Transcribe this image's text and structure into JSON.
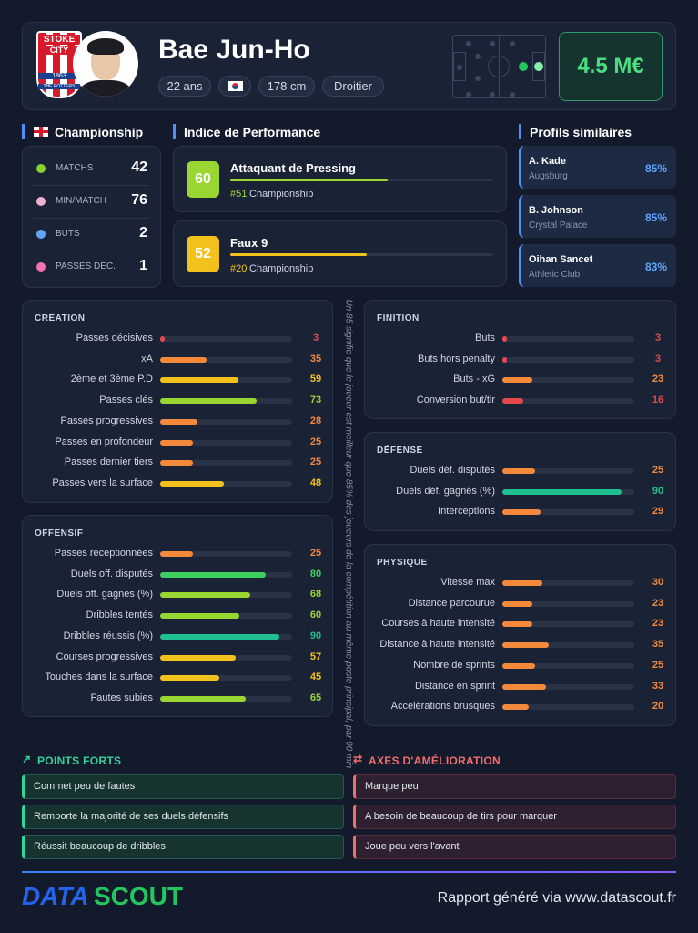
{
  "header": {
    "name": "Bae Jun-Ho",
    "age": "22 ans",
    "height": "178 cm",
    "foot": "Droitier",
    "market_value": "4.5 M€",
    "club_badge": {
      "top": "STOKE",
      "mid": "CITY",
      "year": "1863",
      "bottom": "THE POTTERS"
    }
  },
  "league": {
    "title": "Championship",
    "stats": [
      {
        "label": "MATCHS",
        "value": 42
      },
      {
        "label": "MIN/MATCH",
        "value": 76
      },
      {
        "label": "BUTS",
        "value": 2
      },
      {
        "label": "PASSES DÉC.",
        "value": 1
      }
    ]
  },
  "performance": {
    "title": "Indice de Performance",
    "profiles": [
      {
        "score": 60,
        "role": "Attaquant de Pressing",
        "rank": "#51",
        "league": "Championship"
      },
      {
        "score": 52,
        "role": "Faux 9",
        "rank": "#20",
        "league": "Championship"
      }
    ]
  },
  "similar": {
    "title": "Profils similaires",
    "players": [
      {
        "name": "A. Kade",
        "club": "Augsburg",
        "similarity": "85%"
      },
      {
        "name": "B. Johnson",
        "club": "Crystal Palace",
        "similarity": "85%"
      },
      {
        "name": "Oihan Sancet",
        "club": "Athletic Club",
        "similarity": "83%"
      }
    ]
  },
  "panels": [
    {
      "title": "CRÉATION",
      "rows": [
        {
          "label": "Passes décisives",
          "value": 3
        },
        {
          "label": "xA",
          "value": 35
        },
        {
          "label": "2ème et 3ème P.D",
          "value": 59
        },
        {
          "label": "Passes clés",
          "value": 73
        },
        {
          "label": "Passes progressives",
          "value": 28
        },
        {
          "label": "Passes en profondeur",
          "value": 25
        },
        {
          "label": "Passes dernier tiers",
          "value": 25
        },
        {
          "label": "Passes vers la surface",
          "value": 48
        }
      ]
    },
    {
      "title": "OFFENSIF",
      "rows": [
        {
          "label": "Passes réceptionnées",
          "value": 25
        },
        {
          "label": "Duels off. disputés",
          "value": 80
        },
        {
          "label": "Duels off. gagnés (%)",
          "value": 68
        },
        {
          "label": "Dribbles tentés",
          "value": 60
        },
        {
          "label": "Dribbles réussis (%)",
          "value": 90
        },
        {
          "label": "Courses progressives",
          "value": 57
        },
        {
          "label": "Touches dans la surface",
          "value": 45
        },
        {
          "label": "Fautes subies",
          "value": 65
        }
      ]
    },
    {
      "title": "FINITION",
      "rows": [
        {
          "label": "Buts",
          "value": 3
        },
        {
          "label": "Buts hors penalty",
          "value": 3
        },
        {
          "label": "Buts - xG",
          "value": 23
        },
        {
          "label": "Conversion but/tir",
          "value": 16
        }
      ]
    },
    {
      "title": "DÉFENSE",
      "rows": [
        {
          "label": "Duels déf. disputés",
          "value": 25
        },
        {
          "label": "Duels déf. gagnés (%)",
          "value": 90
        },
        {
          "label": "Interceptions",
          "value": 29
        }
      ]
    },
    {
      "title": "PHYSIQUE",
      "rows": [
        {
          "label": "Vitesse max",
          "value": 30
        },
        {
          "label": "Distance parcourue",
          "value": 23
        },
        {
          "label": "Courses à haute intensité",
          "value": 23
        },
        {
          "label": "Distance à haute intensité",
          "value": 35
        },
        {
          "label": "Nombre de sprints",
          "value": 25
        },
        {
          "label": "Distance en sprint",
          "value": 33
        },
        {
          "label": "Accélérations brusques",
          "value": 20
        }
      ]
    }
  ],
  "note": "Un 85 signifie que le joueur est meilleur que 85% des joueurs de la compétition au même poste principal, par 90 min",
  "strengths": {
    "title": "POINTS FORTS",
    "items": [
      "Commet peu de fautes",
      "Remporte la majorité de ses duels défensifs",
      "Réussit beaucoup de dribbles"
    ]
  },
  "improvements": {
    "title": "AXES D'AMÉLIORATION",
    "items": [
      "Marque peu",
      "A besoin de beaucoup de tirs pour marquer",
      "Joue peu vers l'avant"
    ]
  },
  "footer": {
    "logo": [
      "DATA",
      "SCOUT"
    ],
    "text": "Rapport généré via www.datascout.fr"
  }
}
